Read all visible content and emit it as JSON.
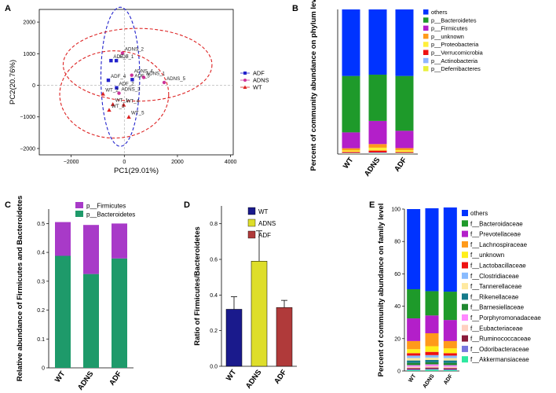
{
  "panel_labels": [
    "A",
    "B",
    "C",
    "D",
    "E"
  ],
  "chart_data": [
    {
      "panel": "A",
      "type": "scatter",
      "xlabel": "PC1(29.01%)",
      "ylabel": "PC2(20.76%)",
      "xlim": [
        -3200,
        4100
      ],
      "ylim": [
        -2200,
        2400
      ],
      "xticks": [
        -2000,
        0,
        2000,
        4000
      ],
      "xtick_labels": [
        "−2000",
        "0",
        "2000",
        "4000"
      ],
      "yticks": [
        -2000,
        -1000,
        0,
        1000,
        2000
      ],
      "ytick_labels": [
        "−2000",
        "−1000",
        "0",
        "1000",
        "2000"
      ],
      "legend": [
        {
          "name": "ADF",
          "color": "#2222cc",
          "marker": "square"
        },
        {
          "name": "ADNS",
          "color": "#cc3399",
          "marker": "circle"
        },
        {
          "name": "WT",
          "color": "#dd2222",
          "marker": "triangle"
        }
      ],
      "points": [
        {
          "label": "ADNS_2",
          "group": "ADNS",
          "x": -70,
          "y": 1020
        },
        {
          "label": "ADF_3",
          "group": "ADF",
          "x": -500,
          "y": 780
        },
        {
          "label": "ADF_1",
          "group": "ADF",
          "x": -300,
          "y": 780
        },
        {
          "label": "ADNS_4",
          "group": "ADNS",
          "x": 280,
          "y": 320
        },
        {
          "label": "ADF_4",
          "group": "ADF",
          "x": -600,
          "y": 160
        },
        {
          "label": "ADF_5",
          "group": "ADF",
          "x": 300,
          "y": 180
        },
        {
          "label": "ADNS_1",
          "group": "ADNS",
          "x": 730,
          "y": 250
        },
        {
          "label": "ADNS_5",
          "group": "ADNS",
          "x": 1500,
          "y": 90
        },
        {
          "label": "ADF_2",
          "group": "ADF",
          "x": -290,
          "y": -80
        },
        {
          "label": "ADNS_3",
          "group": "ADNS",
          "x": -200,
          "y": -250
        },
        {
          "label": "WT_2",
          "group": "WT",
          "x": -800,
          "y": -270
        },
        {
          "label": "WT_1",
          "group": "WT",
          "x": -430,
          "y": -600
        },
        {
          "label": "WT_4",
          "group": "WT",
          "x": -20,
          "y": -620
        },
        {
          "label": "WT_3",
          "group": "WT",
          "x": -570,
          "y": -780
        },
        {
          "label": "WT_5",
          "group": "WT",
          "x": 170,
          "y": -1000
        }
      ],
      "ellipses": [
        {
          "group": "ADF",
          "color": "#2222cc",
          "cx": -150,
          "cy": 270,
          "rx": 730,
          "ry": 2200,
          "tilt": 0
        },
        {
          "group": "ADNS",
          "color": "#dd2222",
          "cx": 500,
          "cy": 650,
          "rx": 2800,
          "ry": 1150,
          "tilt": 0
        },
        {
          "group": "WT",
          "color": "#dd2222",
          "cx": -380,
          "cy": -290,
          "rx": 2050,
          "ry": 1380,
          "tilt": 0
        }
      ]
    },
    {
      "panel": "B",
      "type": "bar",
      "stacked": true,
      "ylabel": "Percent of community abundance on phylum level",
      "categories": [
        "WT",
        "ADNS",
        "ADF"
      ],
      "ylim": [
        0,
        100
      ],
      "series": [
        {
          "name": "p__Deferribacteres",
          "color": "#e8f03a",
          "values": [
            0.3,
            0.3,
            0.3
          ]
        },
        {
          "name": "p__Actinobacteria",
          "color": "#8fb5ff",
          "values": [
            0.5,
            0.8,
            0.5
          ]
        },
        {
          "name": "p__Verrucomicrobia",
          "color": "#ee1111",
          "values": [
            0.7,
            1.3,
            0.6
          ]
        },
        {
          "name": "p__Proteobacteria",
          "color": "#ffef3a",
          "values": [
            1.0,
            2.0,
            1.2
          ]
        },
        {
          "name": "p__unknown",
          "color": "#ff9a1a",
          "values": [
            1.5,
            2.5,
            1.5
          ]
        },
        {
          "name": "p__Firmicutes",
          "color": "#b31fc9",
          "values": [
            11,
            16,
            12
          ]
        },
        {
          "name": "p__Bacteroidetes",
          "color": "#1e9a2a",
          "values": [
            39,
            32,
            37.9
          ]
        },
        {
          "name": "others",
          "color": "#0033ff",
          "values": [
            46,
            45.1,
            46
          ]
        }
      ],
      "legend_order": [
        "others",
        "p__Bacteroidetes",
        "p__Firmicutes",
        "p__unknown",
        "p__Proteobacteria",
        "p__Verrucomicrobia",
        "p__Actinobacteria",
        "p__Deferribacteres"
      ]
    },
    {
      "panel": "C",
      "type": "bar",
      "stacked": true,
      "ylabel": "Relative abundance of Firmicutes and Bacteroidetes",
      "categories": [
        "WT",
        "ADNS",
        "ADF"
      ],
      "ylim": [
        0,
        0.55
      ],
      "yticks": [
        0,
        0.1,
        0.2,
        0.3,
        0.4,
        0.5
      ],
      "ytick_labels": [
        "0",
        "0.1",
        "0.2",
        "0.3",
        "0.4",
        "0.5"
      ],
      "series": [
        {
          "name": "p__Bacteroidetes",
          "color": "#1e9a6a",
          "values": [
            0.388,
            0.325,
            0.379
          ]
        },
        {
          "name": "p__Firmicutes",
          "color": "#a83ac8",
          "values": [
            0.117,
            0.17,
            0.121
          ]
        }
      ],
      "legend_order": [
        "p__Firmicutes",
        "p__Bacteroidetes"
      ]
    },
    {
      "panel": "D",
      "type": "bar",
      "ylabel": "Ratio of Firmicutes/Bacteroidetes",
      "categories": [
        "WT",
        "ADNS",
        "ADF"
      ],
      "values": [
        0.32,
        0.59,
        0.33
      ],
      "errors": [
        0.07,
        0.17,
        0.04
      ],
      "colors": [
        "#1a1a8c",
        "#dede2a",
        "#b03a3a"
      ],
      "ylim": [
        0,
        0.9
      ],
      "yticks": [
        0,
        0.2,
        0.4,
        0.6,
        0.8
      ],
      "ytick_labels": [
        "0.0",
        "0.2",
        "0.4",
        "0.6",
        "0.8"
      ],
      "legend": [
        "WT",
        "ADNS",
        "ADF"
      ]
    },
    {
      "panel": "E",
      "type": "bar",
      "stacked": true,
      "ylabel": "Percent of community abundance on family level",
      "categories": [
        "WT",
        "ADNS",
        "ADF"
      ],
      "ylim": [
        0,
        100
      ],
      "yticks": [
        0,
        20,
        40,
        60,
        80,
        100
      ],
      "ytick_labels": [
        "0",
        "20",
        "40",
        "60",
        "80",
        "100"
      ],
      "series": [
        {
          "name": "f__Akkermansiaceae",
          "color": "#2ee8a0",
          "values": [
            0.5,
            0.8,
            0.5
          ]
        },
        {
          "name": "f__Odoribacteraceae",
          "color": "#7777dd",
          "values": [
            0.5,
            0.5,
            0.5
          ]
        },
        {
          "name": "f__Ruminococcaceae",
          "color": "#8a1a3a",
          "values": [
            0.8,
            0.8,
            0.8
          ]
        },
        {
          "name": "f__Eubacteriaceae",
          "color": "#ffd0c0",
          "values": [
            0.8,
            0.8,
            0.8
          ]
        },
        {
          "name": "f__Porphyromonadaceae",
          "color": "#ff88ff",
          "values": [
            1.0,
            1.2,
            1.0
          ]
        },
        {
          "name": "f__Barnesiellaceae",
          "color": "#208830",
          "values": [
            1.4,
            1.3,
            1.4
          ]
        },
        {
          "name": "f__Rikenellaceae",
          "color": "#147a8a",
          "values": [
            1.5,
            1.4,
            1.5
          ]
        },
        {
          "name": "f__Tannerellaceae",
          "color": "#ffe9a0",
          "values": [
            1.5,
            1.5,
            1.5
          ]
        },
        {
          "name": "f__Clostridiaceae",
          "color": "#88bbff",
          "values": [
            1.5,
            1.5,
            1.5
          ]
        },
        {
          "name": "f__Lactobacillaceae",
          "color": "#ee1111",
          "values": [
            1.5,
            2.0,
            1.5
          ]
        },
        {
          "name": "f__unknown",
          "color": "#ffef1a",
          "values": [
            2.5,
            3.5,
            3.0
          ]
        },
        {
          "name": "f__Lachnospiraceae",
          "color": "#ff9a1a",
          "values": [
            5.0,
            8.0,
            4.5
          ]
        },
        {
          "name": "f__Prevotellaceae",
          "color": "#b31fc9",
          "values": [
            14,
            11,
            13
          ]
        },
        {
          "name": "f__Bacteroidaceae",
          "color": "#1e9a2a",
          "values": [
            18,
            15,
            17.5
          ]
        },
        {
          "name": "others",
          "color": "#0033ff",
          "values": [
            49.5,
            51.2,
            52.0
          ]
        }
      ],
      "legend_order": [
        "others",
        "f__Bacteroidaceae",
        "f__Prevotellaceae",
        "f__Lachnospiraceae",
        "f__unknown",
        "f__Lactobacillaceae",
        "f__Clostridiaceae",
        "f__Tannerellaceae",
        "f__Rikenellaceae",
        "f__Barnesiellaceae",
        "f__Porphyromonadaceae",
        "f__Eubacteriaceae",
        "f__Ruminococcaceae",
        "f__Odoribacteraceae",
        "f__Akkermansiaceae"
      ]
    }
  ]
}
